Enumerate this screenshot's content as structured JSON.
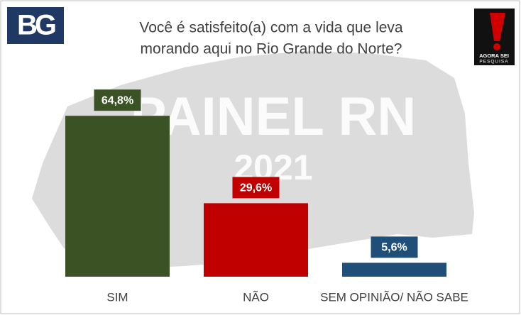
{
  "chart_data": {
    "type": "bar",
    "title": [
      "Você é satisfeito(a) com a vida que leva",
      "morando aqui no Rio Grande do Norte?"
    ],
    "categories": [
      "SIM",
      "NÃO",
      "SEM OPINIÃO/ NÃO SABE"
    ],
    "values": [
      64.8,
      29.6,
      5.6
    ],
    "value_labels": [
      "64,8%",
      "29,6%",
      "5,6%"
    ],
    "colors": [
      "#3a5224",
      "#c00000",
      "#1f4e79"
    ],
    "watermark": [
      "PAINEL RN",
      "2021"
    ],
    "logo_left": "BG",
    "logo_right": [
      "AGORA SEI",
      "PESQUISA"
    ]
  }
}
